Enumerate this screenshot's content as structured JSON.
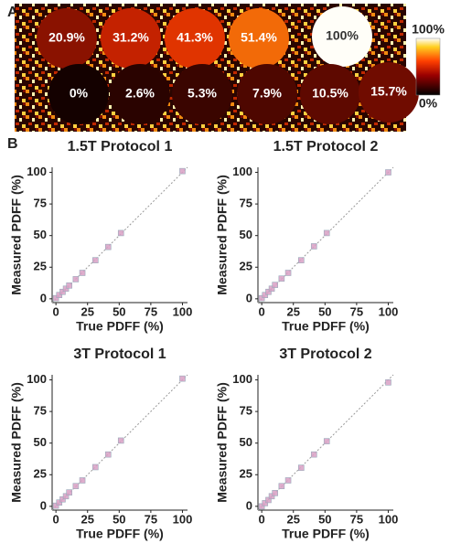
{
  "panel_a": {
    "label": "A",
    "vials": [
      {
        "label": "20.9%",
        "color": "#8a1200"
      },
      {
        "label": "31.2%",
        "color": "#c42200"
      },
      {
        "label": "41.3%",
        "color": "#e03400"
      },
      {
        "label": "51.4%",
        "color": "#f26a08"
      },
      {
        "label": "100%",
        "color": "#fffef8"
      },
      {
        "label": "0%",
        "color": "#140100"
      },
      {
        "label": "2.6%",
        "color": "#2a0300"
      },
      {
        "label": "5.3%",
        "color": "#3a0500"
      },
      {
        "label": "7.9%",
        "color": "#4e0700"
      },
      {
        "label": "10.5%",
        "color": "#5e0900"
      },
      {
        "label": "15.7%",
        "color": "#700c00"
      }
    ],
    "colorbar": {
      "max_label": "100%",
      "min_label": "0%"
    }
  },
  "panel_b": {
    "label": "B"
  },
  "chart_data": [
    {
      "type": "scatter",
      "title": "1.5T Protocol 1",
      "x_label": "True PDFF (%)",
      "y_label": "Measured PDFF (%)",
      "x": [
        0,
        2.6,
        5.3,
        7.9,
        10.5,
        15.7,
        20.9,
        31.2,
        41.3,
        51.4,
        100
      ],
      "values": [
        0.5,
        3,
        5.5,
        8,
        10.5,
        15.5,
        20.5,
        30.5,
        41,
        52,
        101
      ],
      "color": "#d8a0c4",
      "identity_line": true,
      "xlim": [
        -3,
        104
      ],
      "ylim": [
        -3,
        104
      ],
      "xticks": [
        0,
        25,
        50,
        75,
        100
      ],
      "yticks": [
        0,
        25,
        50,
        75,
        100
      ]
    },
    {
      "type": "scatter",
      "title": "1.5T Protocol 2",
      "x_label": "True PDFF (%)",
      "y_label": "Measured PDFF (%)",
      "x": [
        0,
        2.6,
        5.3,
        7.9,
        10.5,
        15.7,
        20.9,
        31.2,
        41.3,
        51.4,
        100
      ],
      "values": [
        0.5,
        3,
        5.5,
        8,
        11,
        16,
        20.5,
        30.5,
        41.5,
        52,
        100
      ],
      "color": "#d8a0c4",
      "identity_line": true,
      "xlim": [
        -3,
        104
      ],
      "ylim": [
        -3,
        104
      ],
      "xticks": [
        0,
        25,
        50,
        75,
        100
      ],
      "yticks": [
        0,
        25,
        50,
        75,
        100
      ]
    },
    {
      "type": "scatter",
      "title": "3T Protocol 1",
      "x_label": "True PDFF (%)",
      "y_label": "Measured PDFF (%)",
      "x": [
        0,
        2.6,
        5.3,
        7.9,
        10.5,
        15.7,
        20.9,
        31.2,
        41.3,
        51.4,
        100
      ],
      "values": [
        0.5,
        3,
        5.5,
        8,
        11,
        16,
        20.5,
        31,
        41,
        52,
        101
      ],
      "color": "#d8a0c4",
      "identity_line": true,
      "xlim": [
        -3,
        104
      ],
      "ylim": [
        -3,
        104
      ],
      "xticks": [
        0,
        25,
        50,
        75,
        100
      ],
      "yticks": [
        0,
        25,
        50,
        75,
        100
      ]
    },
    {
      "type": "scatter",
      "title": "3T Protocol 2",
      "x_label": "True PDFF (%)",
      "y_label": "Measured PDFF (%)",
      "x": [
        0,
        2.6,
        5.3,
        7.9,
        10.5,
        15.7,
        20.9,
        31.2,
        41.3,
        51.4,
        100
      ],
      "values": [
        0,
        2.5,
        5,
        8,
        10.5,
        16,
        20.5,
        30.5,
        41,
        51.5,
        98
      ],
      "color": "#d8a0c4",
      "identity_line": true,
      "xlim": [
        -3,
        104
      ],
      "ylim": [
        -3,
        104
      ],
      "xticks": [
        0,
        25,
        50,
        75,
        100
      ],
      "yticks": [
        0,
        25,
        50,
        75,
        100
      ]
    }
  ]
}
